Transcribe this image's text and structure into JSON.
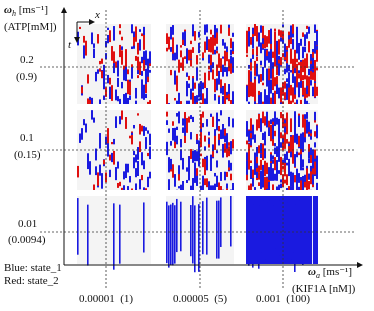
{
  "y_axis": {
    "symbol": "ω",
    "sub": "h",
    "unit": " [ms⁻¹]",
    "quantity": "(ATP[mM])",
    "ticks": [
      {
        "rate": "0.2",
        "conc": "(0.9)"
      },
      {
        "rate": "0.1",
        "conc": "(0.15)"
      },
      {
        "rate": "0.01",
        "conc": "(0.0094)"
      }
    ]
  },
  "x_axis": {
    "symbol": "ω",
    "sub": "a",
    "unit": " [ms⁻¹]",
    "quantity": "(KIF1A [nM])",
    "ticks": [
      "0.00001  (1)",
      "0.00005  (5)",
      "0.001  (100)"
    ]
  },
  "frame": {
    "x": "x",
    "t": "t"
  },
  "legend": [
    "Blue: state_1",
    "Red: state_2"
  ]
}
